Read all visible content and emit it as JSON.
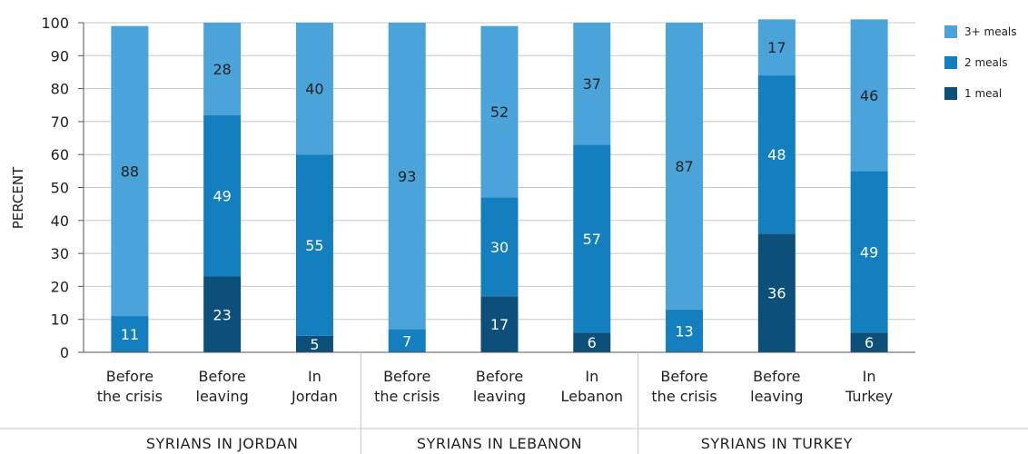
{
  "chart_data": {
    "type": "bar",
    "stacked": true,
    "ylabel": "PERCENT",
    "ylim": [
      0,
      100
    ],
    "yticks": [
      0,
      10,
      20,
      30,
      40,
      50,
      60,
      70,
      80,
      90,
      100
    ],
    "grid": true,
    "legend_position": "top-right",
    "categories": [
      [
        "Before",
        "the crisis"
      ],
      [
        "Before",
        "leaving"
      ],
      [
        "In",
        "Jordan"
      ],
      [
        "Before",
        "the crisis"
      ],
      [
        "Before",
        "leaving"
      ],
      [
        "In",
        "Lebanon"
      ],
      [
        "Before",
        "the crisis"
      ],
      [
        "Before",
        "leaving"
      ],
      [
        "In",
        "Turkey"
      ]
    ],
    "groups": [
      "SYRIANS IN JORDAN",
      "SYRIANS IN LEBANON",
      "SYRIANS IN TURKEY"
    ],
    "series": [
      {
        "name": "1 meal",
        "color": "#0b4f7a",
        "label_color": "#ffffff",
        "values": [
          0,
          23,
          5,
          0,
          17,
          6,
          0,
          36,
          6
        ]
      },
      {
        "name": "2 meals",
        "color": "#137fbf",
        "label_color": "#ffffff",
        "values": [
          11,
          49,
          55,
          7,
          30,
          57,
          13,
          48,
          49
        ]
      },
      {
        "name": "3+ meals",
        "color": "#4aa3d9",
        "label_color": "#222222",
        "values": [
          88,
          28,
          40,
          93,
          52,
          37,
          87,
          17,
          46
        ]
      }
    ],
    "legend_order": [
      "3+ meals",
      "2 meals",
      "1 meal"
    ]
  }
}
